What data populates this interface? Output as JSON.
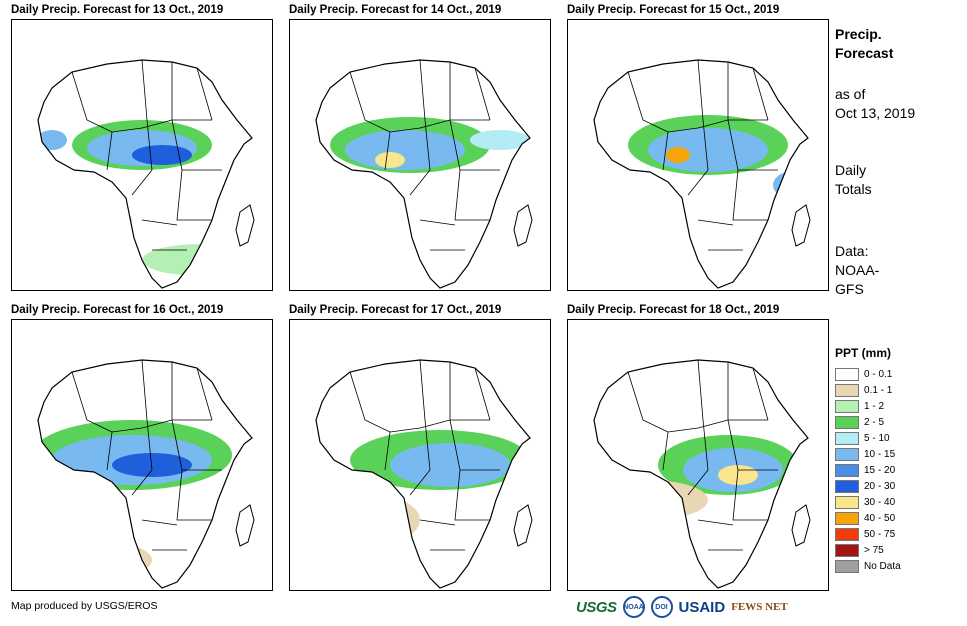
{
  "panels": [
    {
      "title": "Daily Precip. Forecast for 13 Oct., 2019"
    },
    {
      "title": "Daily Precip. Forecast for 14 Oct., 2019"
    },
    {
      "title": "Daily Precip. Forecast for 15 Oct., 2019"
    },
    {
      "title": "Daily Precip. Forecast for 16 Oct., 2019"
    },
    {
      "title": "Daily Precip. Forecast for 17 Oct., 2019"
    },
    {
      "title": "Daily Precip. Forecast for 18 Oct., 2019"
    }
  ],
  "sidebar": {
    "title_line1": "Precip.",
    "title_line2": "Forecast",
    "asof_line1": "as of",
    "asof_line2": "Oct 13, 2019",
    "type_line1": "Daily",
    "type_line2": "Totals",
    "data_line1": "Data:",
    "data_line2": "NOAA-",
    "data_line3": "GFS"
  },
  "legend": {
    "title": "PPT (mm)",
    "items": [
      {
        "label": "0 - 0.1",
        "color": "#ffffff"
      },
      {
        "label": "0.1 - 1",
        "color": "#e8d6b4"
      },
      {
        "label": "1 - 2",
        "color": "#b4f0b4"
      },
      {
        "label": "2 - 5",
        "color": "#5ad25a"
      },
      {
        "label": "5 - 10",
        "color": "#b4ecf6"
      },
      {
        "label": "10 - 15",
        "color": "#78b9f0"
      },
      {
        "label": "15 - 20",
        "color": "#4a8fe6"
      },
      {
        "label": "20 - 30",
        "color": "#1f5fdc"
      },
      {
        "label": "30 - 40",
        "color": "#fae68c"
      },
      {
        "label": "40 - 50",
        "color": "#f5a50a"
      },
      {
        "label": "50 - 75",
        "color": "#f03c0a"
      },
      {
        "label": "> 75",
        "color": "#a01414"
      },
      {
        "label": "No Data",
        "color": "#a0a0a0"
      }
    ]
  },
  "footer": {
    "credit": "Map produced by USGS/EROS"
  },
  "logos": {
    "usgs": "USGS",
    "noaa": "NOAA",
    "doi": "DOI",
    "usaid": "USAID",
    "fews": "FEWS NET"
  }
}
